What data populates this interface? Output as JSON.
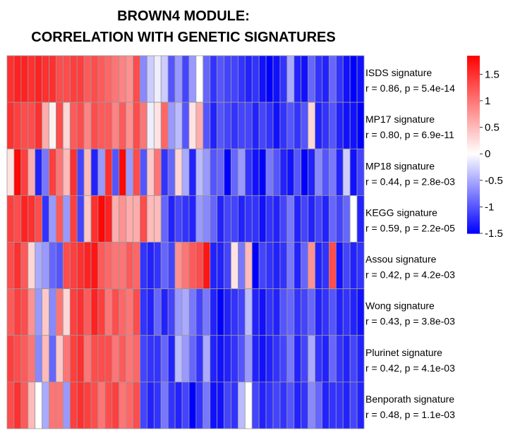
{
  "chart_data": {
    "type": "heatmap",
    "title": [
      "BROWN4 MODULE:",
      "CORRELATION WITH GENETIC SIGNATURES"
    ],
    "rows": [
      {
        "label": "ISDS signature",
        "stat": "r = 0.86, p = 5.4e-14"
      },
      {
        "label": "MP17 signature",
        "stat": "r = 0.80, p = 6.9e-11"
      },
      {
        "label": "MP18 signature",
        "stat": "r = 0.44, p = 2.8e-03"
      },
      {
        "label": "KEGG signature",
        "stat": "r = 0.59, p = 2.2e-05"
      },
      {
        "label": "Assou signature",
        "stat": "r = 0.42, p = 4.2e-03"
      },
      {
        "label": "Wong signature",
        "stat": "r = 0.43, p = 3.8e-03"
      },
      {
        "label": "Plurinet signature",
        "stat": "r = 0.42, p = 4.1e-03"
      },
      {
        "label": "Benporath signature",
        "stat": "r = 0.48, p = 1.1e-03"
      }
    ],
    "values": [
      [
        1.5,
        1.6,
        1.6,
        1.5,
        1.6,
        1.5,
        1.5,
        1.3,
        1.3,
        1.4,
        1.4,
        1.2,
        1.3,
        1.2,
        1.1,
        1.0,
        0.9,
        0.8,
        1.3,
        -0.7,
        -0.3,
        -0.1,
        -0.3,
        -1.0,
        -0.6,
        -1.1,
        -0.6,
        0.0,
        -0.9,
        -1.2,
        -1.0,
        -1.1,
        -1.1,
        -1.2,
        -1.3,
        -1.2,
        -1.4,
        -1.5,
        -1.4,
        -1.2,
        -0.5,
        -1.3,
        -1.4,
        -0.9,
        -1.2,
        -1.3,
        -0.9,
        -1.2,
        -1.4,
        -1.5,
        -1.4
      ],
      [
        1.5,
        1.4,
        1.3,
        1.3,
        1.5,
        0.6,
        0.1,
        1.3,
        0.3,
        1.2,
        1.3,
        0.9,
        1.3,
        1.2,
        1.2,
        0.9,
        1.2,
        0.8,
        1.3,
        1.0,
        -0.1,
        0.2,
        1.1,
        -0.6,
        -0.4,
        -1.0,
        0.2,
        0.6,
        -1.0,
        -1.3,
        -1.0,
        -1.1,
        -1.2,
        -1.1,
        -1.1,
        -1.3,
        -1.1,
        -1.2,
        -1.4,
        -1.2,
        -1.0,
        -1.2,
        -1.0,
        0.3,
        -1.3,
        -1.2,
        -1.0,
        -1.3,
        -1.4,
        -1.4,
        -1.5
      ],
      [
        0.2,
        1.8,
        1.4,
        0.6,
        -1.3,
        -0.8,
        1.4,
        1.0,
        0.5,
        1.5,
        -1.1,
        0.5,
        -1.3,
        -0.6,
        1.5,
        -1.0,
        1.8,
        -0.6,
        1.3,
        -1.0,
        0.4,
        1.0,
        -1.2,
        -0.9,
        0.3,
        -0.5,
        -1.3,
        -0.4,
        -0.6,
        -1.0,
        -0.9,
        -1.5,
        -0.9,
        -0.6,
        -1.2,
        -1.4,
        -1.5,
        -0.8,
        -1.0,
        -1.3,
        -1.4,
        -1.0,
        -1.5,
        -1.3,
        -0.7,
        -1.0,
        -0.8,
        -1.3,
        -0.3,
        -1.4,
        -1.1
      ],
      [
        1.4,
        1.3,
        1.6,
        1.5,
        1.3,
        -1.2,
        -0.6,
        1.2,
        -0.6,
        1.4,
        -1.1,
        0.4,
        1.5,
        1.8,
        1.6,
        0.6,
        0.8,
        0.6,
        0.6,
        1.3,
        0.5,
        0.5,
        -0.9,
        -1.3,
        -1.1,
        -1.2,
        -1.3,
        -0.6,
        -0.7,
        -0.9,
        -1.3,
        -1.1,
        -1.1,
        -1.3,
        -1.2,
        -1.2,
        -1.4,
        -1.2,
        -1.3,
        -1.1,
        -0.8,
        -1.3,
        -1.1,
        -1.3,
        -1.1,
        -1.3,
        -0.9,
        -1.1,
        -0.9,
        0.0,
        -1.3
      ],
      [
        1.3,
        1.5,
        1.2,
        0.3,
        -0.5,
        -0.6,
        -0.9,
        -1.0,
        1.3,
        1.4,
        1.5,
        1.6,
        1.7,
        1.2,
        1.1,
        1.0,
        1.0,
        1.2,
        1.1,
        -1.2,
        -1.3,
        -1.2,
        -0.9,
        -1.1,
        0.8,
        1.0,
        1.2,
        1.3,
        1.7,
        -1.3,
        -1.3,
        -1.1,
        0.2,
        -0.8,
        0.5,
        -1.5,
        -1.1,
        -1.2,
        -1.3,
        -1.2,
        -0.8,
        -1.3,
        -0.9,
        0.8,
        -1.3,
        -1.2,
        1.3,
        -1.4,
        -1.1,
        -1.3,
        -1.2
      ],
      [
        1.2,
        1.4,
        1.3,
        0.8,
        -0.6,
        0.4,
        -0.7,
        1.0,
        0.3,
        1.4,
        1.5,
        1.2,
        1.6,
        1.4,
        1.0,
        1.3,
        1.1,
        1.0,
        1.3,
        -1.2,
        -1.3,
        -0.9,
        -1.3,
        -1.1,
        -0.6,
        -0.5,
        -0.8,
        -1.1,
        -0.8,
        -1.3,
        -1.5,
        -1.3,
        -1.2,
        -1.1,
        -0.4,
        -1.3,
        -1.4,
        -1.2,
        -1.3,
        -1.0,
        -0.9,
        -1.2,
        -1.1,
        -0.9,
        -1.3,
        -1.2,
        -1.0,
        -1.3,
        -1.2,
        -1.3,
        -1.4
      ],
      [
        1.4,
        1.3,
        1.2,
        1.0,
        -0.7,
        0.5,
        -0.9,
        0.4,
        1.0,
        1.4,
        1.5,
        1.0,
        1.3,
        1.3,
        1.3,
        1.0,
        1.2,
        1.0,
        1.1,
        -1.1,
        -1.2,
        -1.2,
        -0.9,
        -1.3,
        -0.4,
        -0.6,
        -0.9,
        -1.2,
        -0.5,
        -1.3,
        -1.4,
        -1.3,
        -1.2,
        -1.0,
        -0.6,
        -1.3,
        -1.4,
        -1.3,
        -1.2,
        -1.1,
        -0.8,
        -1.3,
        -1.1,
        -0.5,
        -1.2,
        -1.3,
        -0.9,
        -1.2,
        -1.3,
        -1.1,
        -1.3
      ],
      [
        1.3,
        1.5,
        1.2,
        0.5,
        0.0,
        -0.5,
        1.0,
        1.0,
        -0.6,
        1.4,
        1.5,
        1.4,
        1.3,
        1.0,
        1.3,
        1.4,
        1.0,
        1.1,
        1.3,
        -1.1,
        -1.3,
        -1.2,
        -0.8,
        -1.2,
        -1.3,
        -1.1,
        -1.5,
        -1.2,
        -0.8,
        -1.4,
        -1.4,
        -1.1,
        -1.2,
        -0.4,
        0.0,
        -1.1,
        -1.3,
        -1.2,
        -1.1,
        -1.2,
        -1.0,
        -1.3,
        -1.2,
        -0.7,
        -0.9,
        -1.3,
        -1.2,
        -1.2,
        -1.3,
        -1.1,
        -1.3
      ]
    ],
    "color_scale": {
      "min": -1.5,
      "max": 1.85,
      "low": "#0000ff",
      "mid": "#ffffff",
      "high": "#ff0000",
      "ticks": [
        "1.5",
        "1",
        "0.5",
        "0",
        "-0.5",
        "-1",
        "-1.5"
      ],
      "tick_values": [
        1.5,
        1.0,
        0.5,
        0.0,
        -0.5,
        -1.0,
        -1.5
      ]
    },
    "legend": "right",
    "cell_border": "#999999"
  }
}
